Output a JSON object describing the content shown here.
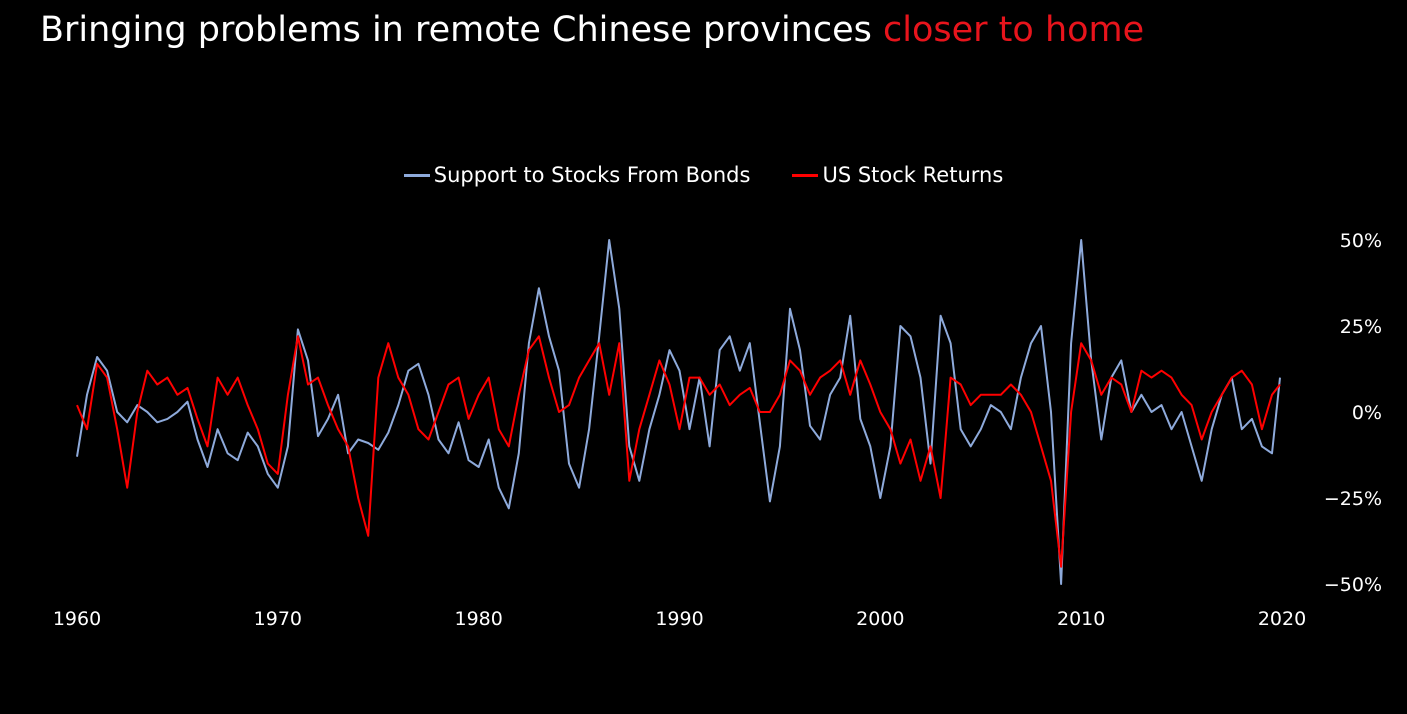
{
  "title": {
    "main": "Bringing problems in remote Chinese provinces",
    "highlight": "closer to home"
  },
  "colors": {
    "highlight": "#e8141c",
    "bonds": "#8eaadb",
    "stocks": "#ff0000",
    "background": "#000000"
  },
  "chart_data": {
    "type": "line",
    "title": "Bringing problems in remote Chinese provinces closer to home",
    "xlabel": "",
    "ylabel": "",
    "xlim": [
      1960,
      2020
    ],
    "ylim": [
      -0.5,
      0.5
    ],
    "x_ticks": [
      "1960",
      "1970",
      "1980",
      "1990",
      "2000",
      "2010",
      "2020"
    ],
    "y_ticks": [
      "50%",
      "25%",
      "0%",
      "−25%",
      "−50%"
    ],
    "y_axis_side": "right",
    "legend_position": "top-center",
    "grid": false,
    "series": [
      {
        "name": "Support to Stocks From Bonds",
        "color": "#8eaadb",
        "x": [
          1960.0,
          1960.5,
          1961.0,
          1961.5,
          1962.0,
          1962.5,
          1963.0,
          1963.5,
          1964.0,
          1964.5,
          1965.0,
          1965.5,
          1966.0,
          1966.5,
          1967.0,
          1967.5,
          1968.0,
          1968.5,
          1969.0,
          1969.5,
          1970.0,
          1970.5,
          1971.0,
          1971.5,
          1972.0,
          1972.5,
          1973.0,
          1973.5,
          1974.0,
          1974.5,
          1975.0,
          1975.5,
          1976.0,
          1976.5,
          1977.0,
          1977.5,
          1978.0,
          1978.5,
          1979.0,
          1979.5,
          1980.0,
          1980.5,
          1981.0,
          1981.5,
          1982.0,
          1982.5,
          1983.0,
          1983.5,
          1984.0,
          1984.5,
          1985.0,
          1985.5,
          1986.0,
          1986.5,
          1987.0,
          1987.5,
          1988.0,
          1988.5,
          1989.0,
          1989.5,
          1990.0,
          1990.5,
          1991.0,
          1991.5,
          1992.0,
          1992.5,
          1993.0,
          1993.5,
          1994.0,
          1994.5,
          1995.0,
          1995.5,
          1996.0,
          1996.5,
          1997.0,
          1997.5,
          1998.0,
          1998.5,
          1999.0,
          1999.5,
          2000.0,
          2000.5,
          2001.0,
          2001.5,
          2002.0,
          2002.5,
          2003.0,
          2003.5,
          2004.0,
          2004.5,
          2005.0,
          2005.5,
          2006.0,
          2006.5,
          2007.0,
          2007.5,
          2008.0,
          2008.5,
          2009.0,
          2009.5,
          2010.0,
          2010.5,
          2011.0,
          2011.5,
          2012.0,
          2012.5,
          2013.0,
          2013.5,
          2014.0,
          2014.5,
          2015.0,
          2015.5,
          2016.0,
          2016.5,
          2017.0,
          2017.5,
          2018.0,
          2018.5,
          2019.0,
          2019.5,
          2019.9
        ],
        "values": [
          -0.13,
          0.05,
          0.16,
          0.12,
          0.0,
          -0.03,
          0.02,
          0.0,
          -0.03,
          -0.02,
          0.0,
          0.03,
          -0.08,
          -0.16,
          -0.05,
          -0.12,
          -0.14,
          -0.06,
          -0.1,
          -0.18,
          -0.22,
          -0.1,
          0.24,
          0.15,
          -0.07,
          -0.02,
          0.05,
          -0.12,
          -0.08,
          -0.09,
          -0.11,
          -0.06,
          0.02,
          0.12,
          0.14,
          0.05,
          -0.08,
          -0.12,
          -0.03,
          -0.14,
          -0.16,
          -0.08,
          -0.22,
          -0.28,
          -0.12,
          0.2,
          0.36,
          0.22,
          0.12,
          -0.15,
          -0.22,
          -0.05,
          0.22,
          0.5,
          0.3,
          -0.1,
          -0.2,
          -0.05,
          0.05,
          0.18,
          0.12,
          -0.05,
          0.1,
          -0.1,
          0.18,
          0.22,
          0.12,
          0.2,
          -0.03,
          -0.26,
          -0.1,
          0.3,
          0.18,
          -0.04,
          -0.08,
          0.05,
          0.1,
          0.28,
          -0.02,
          -0.1,
          -0.25,
          -0.1,
          0.25,
          0.22,
          0.1,
          -0.15,
          0.28,
          0.2,
          -0.05,
          -0.1,
          -0.05,
          0.02,
          0.0,
          -0.05,
          0.1,
          0.2,
          0.25,
          0.0,
          -0.5,
          0.2,
          0.5,
          0.15,
          -0.08,
          0.1,
          0.15,
          0.0,
          0.05,
          0.0,
          0.02,
          -0.05,
          0.0,
          -0.1,
          -0.2,
          -0.05,
          0.05,
          0.1,
          -0.05,
          -0.02,
          -0.1,
          -0.12,
          0.1
        ]
      },
      {
        "name": "US Stock Returns",
        "color": "#ff0000",
        "x": [
          1960.0,
          1960.5,
          1961.0,
          1961.5,
          1962.0,
          1962.5,
          1963.0,
          1963.5,
          1964.0,
          1964.5,
          1965.0,
          1965.5,
          1966.0,
          1966.5,
          1967.0,
          1967.5,
          1968.0,
          1968.5,
          1969.0,
          1969.5,
          1970.0,
          1970.5,
          1971.0,
          1971.5,
          1972.0,
          1972.5,
          1973.0,
          1973.5,
          1974.0,
          1974.5,
          1975.0,
          1975.5,
          1976.0,
          1976.5,
          1977.0,
          1977.5,
          1978.0,
          1978.5,
          1979.0,
          1979.5,
          1980.0,
          1980.5,
          1981.0,
          1981.5,
          1982.0,
          1982.5,
          1983.0,
          1983.5,
          1984.0,
          1984.5,
          1985.0,
          1985.5,
          1986.0,
          1986.5,
          1987.0,
          1987.5,
          1988.0,
          1988.5,
          1989.0,
          1989.5,
          1990.0,
          1990.5,
          1991.0,
          1991.5,
          1992.0,
          1992.5,
          1993.0,
          1993.5,
          1994.0,
          1994.5,
          1995.0,
          1995.5,
          1996.0,
          1996.5,
          1997.0,
          1997.5,
          1998.0,
          1998.5,
          1999.0,
          1999.5,
          2000.0,
          2000.5,
          2001.0,
          2001.5,
          2002.0,
          2002.5,
          2003.0,
          2003.5,
          2004.0,
          2004.5,
          2005.0,
          2005.5,
          2006.0,
          2006.5,
          2007.0,
          2007.5,
          2008.0,
          2008.5,
          2009.0,
          2009.5,
          2010.0,
          2010.5,
          2011.0,
          2011.5,
          2012.0,
          2012.5,
          2013.0,
          2013.5,
          2014.0,
          2014.5,
          2015.0,
          2015.5,
          2016.0,
          2016.5,
          2017.0,
          2017.5,
          2018.0,
          2018.5,
          2019.0,
          2019.5,
          2019.9
        ],
        "values": [
          0.02,
          -0.05,
          0.14,
          0.1,
          -0.05,
          -0.22,
          0.0,
          0.12,
          0.08,
          0.1,
          0.05,
          0.07,
          -0.02,
          -0.1,
          0.1,
          0.05,
          0.1,
          0.02,
          -0.05,
          -0.15,
          -0.18,
          0.05,
          0.22,
          0.08,
          0.1,
          0.02,
          -0.05,
          -0.1,
          -0.25,
          -0.36,
          0.1,
          0.2,
          0.1,
          0.05,
          -0.05,
          -0.08,
          0.0,
          0.08,
          0.1,
          -0.02,
          0.05,
          0.1,
          -0.05,
          -0.1,
          0.05,
          0.18,
          0.22,
          0.1,
          0.0,
          0.02,
          0.1,
          0.15,
          0.2,
          0.05,
          0.2,
          -0.2,
          -0.05,
          0.05,
          0.15,
          0.08,
          -0.05,
          0.1,
          0.1,
          0.05,
          0.08,
          0.02,
          0.05,
          0.07,
          0.0,
          0.0,
          0.05,
          0.15,
          0.12,
          0.05,
          0.1,
          0.12,
          0.15,
          0.05,
          0.15,
          0.08,
          0.0,
          -0.05,
          -0.15,
          -0.08,
          -0.2,
          -0.1,
          -0.25,
          0.1,
          0.08,
          0.02,
          0.05,
          0.05,
          0.05,
          0.08,
          0.05,
          0.0,
          -0.1,
          -0.2,
          -0.45,
          0.0,
          0.2,
          0.15,
          0.05,
          0.1,
          0.08,
          0.0,
          0.12,
          0.1,
          0.12,
          0.1,
          0.05,
          0.02,
          -0.08,
          0.0,
          0.05,
          0.1,
          0.12,
          0.08,
          -0.05,
          0.05,
          0.08
        ]
      }
    ]
  }
}
